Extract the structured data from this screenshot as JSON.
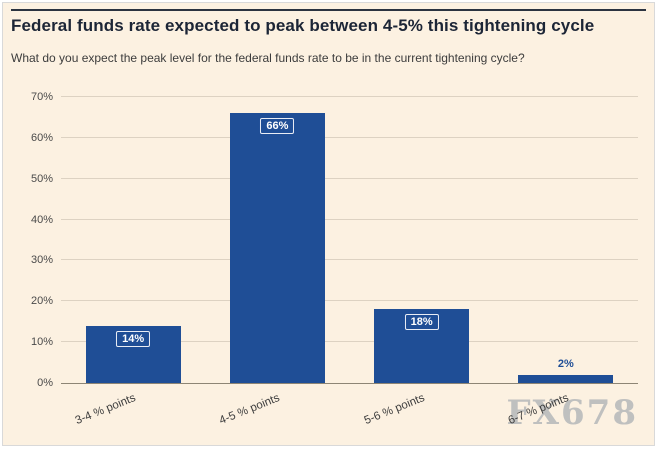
{
  "header": {
    "title": "Federal funds rate expected to peak between 4-5% this tightening cycle",
    "subtitle": "What do you expect the peak level for the federal funds rate to be in the current tightening cycle?"
  },
  "watermark": "FX678",
  "colors": {
    "background": "#fcf1e1",
    "bar": "#1f4e96",
    "title": "#1c2536",
    "subtitle": "#3c3c3c",
    "grid": "#ddd2c2",
    "axis": "#8d8575",
    "tick_text": "#4a4a4a",
    "watermark": "#98a0aa"
  },
  "chart_data": {
    "type": "bar",
    "title": "Federal funds rate expected to peak between 4-5% this tightening cycle",
    "subtitle": "What do you expect the peak level for the federal funds rate to be in the current tightening cycle?",
    "categories": [
      "3-4 % points",
      "4-5 % points",
      "5-6 % points",
      "6-7 % points"
    ],
    "values": [
      14,
      66,
      18,
      2
    ],
    "value_labels": [
      "14%",
      "66%",
      "18%",
      "2%"
    ],
    "xlabel": "",
    "ylabel": "",
    "ylim": [
      0,
      70
    ],
    "ytick_step": 10,
    "ytick_suffix": "%",
    "grid": true,
    "legend": false,
    "inside_label_min": 8
  }
}
